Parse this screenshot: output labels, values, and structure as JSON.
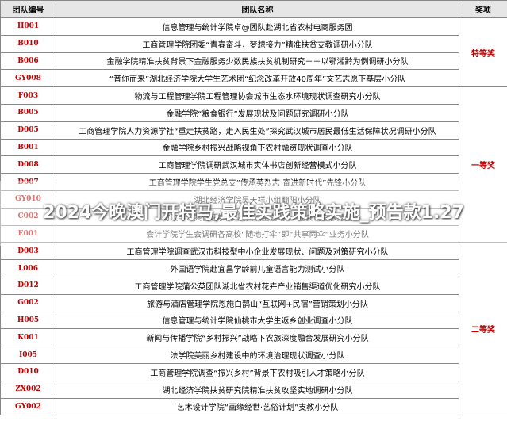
{
  "header": {
    "code": "团队编号",
    "name": "团队名称",
    "award": "奖项"
  },
  "groups": [
    {
      "award": "特等奖",
      "rows": [
        [
          "H001",
          "信息管理与统计学院卓@团队赴湖北省农村电商服务团"
        ],
        [
          "B010",
          "工商管理学院团委“青春奋斗，梦想接力”精准扶贫支教调研小分队"
        ],
        [
          "B006",
          "金融学院精准扶贫背景下金融服务少数民族扶贫机制研究－－以鄂湘黔为例调研小分队"
        ],
        [
          "GY008",
          "“音你而来”湖北经济学院大学生艺术团“纪念改革开放40周年”文艺志愿下基层小分队"
        ]
      ]
    },
    {
      "award": "一等奖",
      "rows": [
        [
          "F003",
          "物流与工程管理学院工程管理协会城市生态水环境现状调查研究小分队"
        ],
        [
          "B005",
          "金融学院“粮食银行”发展现状及问题研究调研小分队"
        ],
        [
          "D005",
          "工商管理学院人力资源学社“重走扶贫路，走入民生处”探究武汉城市居民最低生活保障状况调研小分队"
        ],
        [
          "B001",
          "金融学院乡村振兴战略视角下农村融资现状调查小分队"
        ],
        [
          "D008",
          "工商管理学院调研武汉城市实体书店创新经营模式小分队"
        ],
        [
          "D007",
          "工商管理学院学生党总支“传承英烈志 奋进新时代”先锋小分队"
        ],
        [
          "GY010",
          "湖北经济学院吴天祥小组翻阳小分队"
        ],
        [
          "C002",
          "财政与公共管理学院“脱贫攻坚在路上”社会调查服务团"
        ],
        [
          "E001",
          "会计学院学生会调研各高校“随地打伞”即“共享雨伞”业务小分队"
        ]
      ]
    },
    {
      "award": "二等奖",
      "rows": [
        [
          "D003",
          "工商管理学院调查武汉市科技型中小企业发展现状、问题及对策研究小分队"
        ],
        [
          "L006",
          "外国语学院赴宜昌学龄前儿童语言能力测试小分队"
        ],
        [
          "D012",
          "工商管理学院蒲公英团队湖北省农村花卉产业销售渠道优化研究小分队"
        ],
        [
          "G002",
          "旅游与酒店管理学院恩施白鹊山“互联网+民宿”营销策划小分队"
        ],
        [
          "H005",
          "信息管理与统计学院仙桃市大学生返乡创业调查小分队"
        ],
        [
          "K001",
          "新闻与传播学院“乡村振兴”战略下农旅深度融合发展研究小分队"
        ],
        [
          "I005",
          "法学院美丽乡村建设中的环境治理现状调查小分队"
        ],
        [
          "D010",
          "工商管理学院调查“振兴乡村”背景下农村吸引人才策略小分队"
        ],
        [
          "ZX002",
          "湖北经济学院扶贫研究院精准扶贫攻坚实地调研小分队"
        ],
        [
          "GY002",
          "艺术设计学院“画缘经世·艺俗计划”支教小分队"
        ]
      ]
    }
  ],
  "overlay": "2024今晚澳门开特马,最佳实践策略实施_预告款1.27"
}
